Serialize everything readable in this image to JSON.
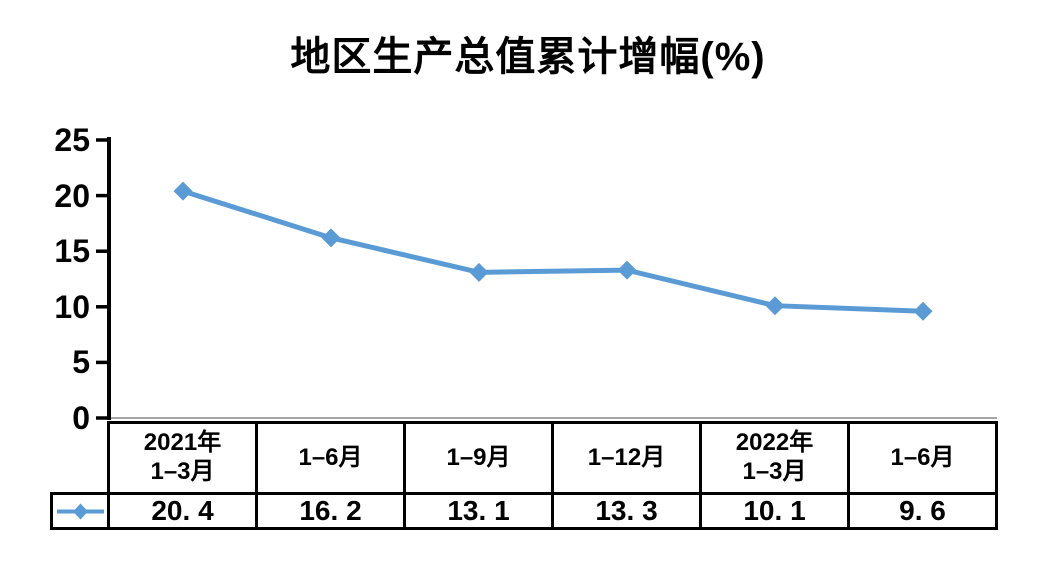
{
  "title": "地区生产总值累计增幅(%)",
  "colors": {
    "series": "#5B9BD5",
    "value_axis": "#000000",
    "category_axis": "#A6A6A6",
    "table_border": "#000000",
    "text": "#000000",
    "background": "#FFFFFF"
  },
  "chart_data": {
    "type": "line",
    "title": "地区生产总值累计增幅(%)",
    "categories": [
      "2021年1–3月",
      "1–6月",
      "1–9月",
      "1–12月",
      "2022年1–3月",
      "1–6月"
    ],
    "values": [
      20.4,
      16.2,
      13.1,
      13.3,
      10.1,
      9.6
    ],
    "xlabel": "",
    "ylabel": "",
    "ylim": [
      0,
      25
    ],
    "yticks": [
      "0",
      "5",
      "10",
      "15",
      "20",
      "25"
    ],
    "grid": false,
    "marker": "diamond",
    "line_color": "#5B9BD5",
    "legend_position": "table-row-left"
  },
  "table": {
    "headers": [
      "2021年\n1–3月",
      "1–6月",
      "1–9月",
      "1–12月",
      "2022年\n1–3月",
      "1–6月"
    ],
    "values": [
      "20. 4",
      "16. 2",
      "13. 1",
      "13. 3",
      "10. 1",
      "9. 6"
    ],
    "legend_marker": "line-with-diamond"
  }
}
